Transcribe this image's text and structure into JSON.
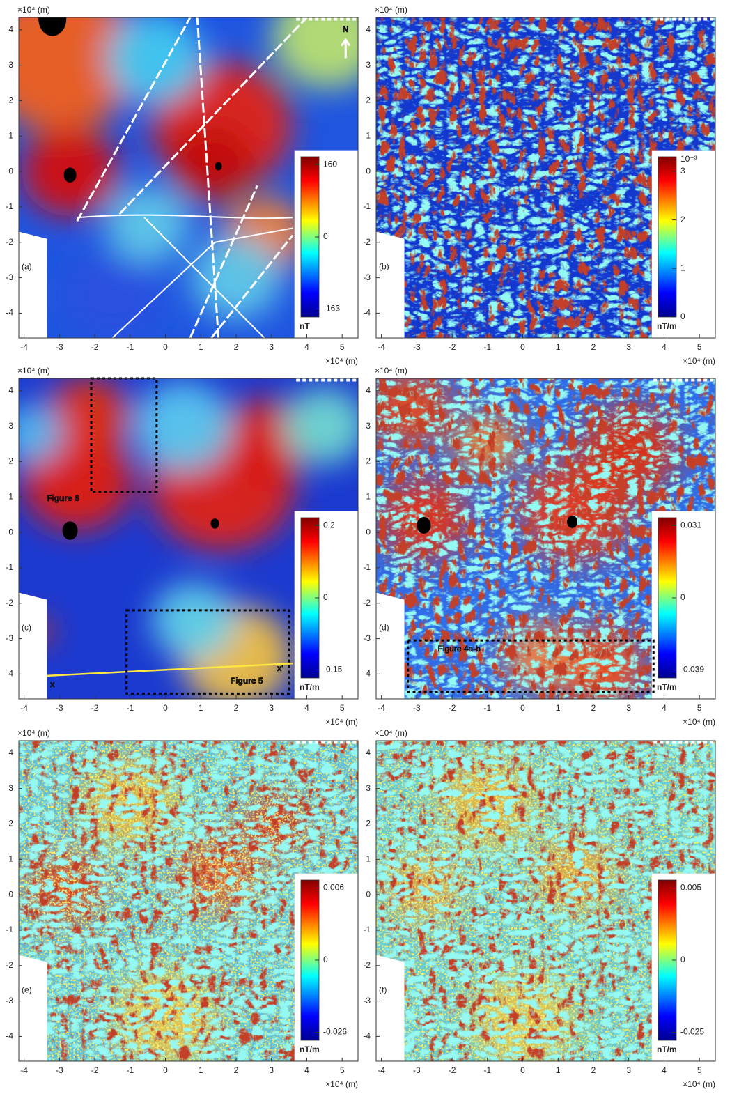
{
  "axis_label": "×10⁴ (m)",
  "xlim": [
    -4.15,
    5.45
  ],
  "ylim": [
    -4.7,
    4.35
  ],
  "xticks": [
    -4,
    -3,
    -2,
    -1,
    0,
    1,
    2,
    3,
    4,
    5
  ],
  "yticks": [
    -4,
    -3,
    -2,
    -1,
    0,
    1,
    2,
    3,
    4
  ],
  "panels": [
    {
      "label": "(a)",
      "annotations": [
        "N"
      ],
      "colorbar": {
        "ticks": [
          -163,
          0,
          160
        ],
        "unit": "nT"
      }
    },
    {
      "label": "(b)",
      "annotations": [],
      "colorbar": {
        "ticks": [
          0,
          1,
          2,
          3
        ],
        "clim": [
          0,
          3.3
        ],
        "exponent": "10⁻³",
        "unit": "nT/m"
      }
    },
    {
      "label": "(c)",
      "annotations": [
        "Figure 6",
        "Figure 5",
        "x",
        "x'"
      ],
      "colorbar": {
        "ticks": [
          -0.15,
          0,
          0.2
        ],
        "unit": "nT/m"
      }
    },
    {
      "label": "(d)",
      "annotations": [
        "Figure 4a-b"
      ],
      "colorbar": {
        "ticks": [
          -0.039,
          0,
          0.031
        ],
        "unit": "nT/m"
      }
    },
    {
      "label": "(e)",
      "annotations": [],
      "colorbar": {
        "ticks": [
          -0.026,
          0,
          0.006
        ],
        "unit": "nT/m"
      }
    },
    {
      "label": "(f)",
      "annotations": [],
      "colorbar": {
        "ticks": [
          -0.025,
          0,
          0.005
        ],
        "unit": "nT/m"
      }
    }
  ]
}
